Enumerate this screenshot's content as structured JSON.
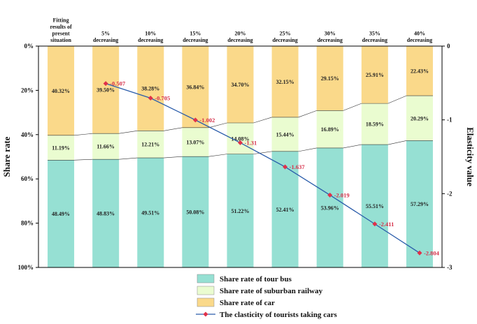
{
  "chart_data": {
    "type": "bar",
    "stacked": true,
    "categories": [
      "Fitting results of present situation",
      "5% decreasing",
      "10% decreasing",
      "15% decreasing",
      "20% decreasing",
      "25% decreasing",
      "30% decreasing",
      "35% decreasing",
      "40% decreasing"
    ],
    "category_lines": [
      [
        "Fitting",
        "results of",
        "present",
        "situation"
      ],
      [
        "5%",
        "decreasing"
      ],
      [
        "10%",
        "decreasing"
      ],
      [
        "15%",
        "decreasing"
      ],
      [
        "20%",
        "decreasing"
      ],
      [
        "25%",
        "decreasing"
      ],
      [
        "30%",
        "decreasing"
      ],
      [
        "35%",
        "decreasing"
      ],
      [
        "40%",
        "decreasing"
      ]
    ],
    "series": [
      {
        "name": "Share rate of tour bus",
        "color": "#96e0d3",
        "values": [
          48.49,
          48.83,
          49.51,
          50.08,
          51.22,
          52.41,
          53.96,
          55.51,
          57.29
        ],
        "labels": [
          "48.49%",
          "48.83%",
          "49.51%",
          "50.08%",
          "51.22%",
          "52.41%",
          "53.96%",
          "55.51%",
          "57.29%"
        ]
      },
      {
        "name": "Share rate of suburban railway",
        "color": "#eafcd0",
        "values": [
          11.19,
          11.66,
          12.21,
          13.07,
          14.08,
          15.44,
          16.89,
          18.59,
          20.29
        ],
        "labels": [
          "11.19%",
          "11.66%",
          "12.21%",
          "13.07%",
          "14.08%",
          "15.44%",
          "16.89%",
          "18.59%",
          "20.29%"
        ]
      },
      {
        "name": "Share rate of car",
        "color": "#fad98a",
        "values": [
          40.32,
          39.5,
          38.28,
          36.84,
          34.7,
          32.15,
          29.15,
          25.91,
          22.43
        ],
        "labels": [
          "40.32%",
          "39.50%",
          "38.28%",
          "36.84%",
          "34.70%",
          "32.15%",
          "29.15%",
          "25.91%",
          "22.43%"
        ]
      }
    ],
    "line_series": {
      "name": "The clasticity of tourists taking cars",
      "color": "#2a5caa",
      "marker_color": "#e0304a",
      "start_index": 1,
      "values": [
        -0.507,
        -0.705,
        -1.002,
        -1.31,
        -1.637,
        -2.019,
        -2.411,
        -2.804
      ],
      "labels": [
        "-0.507",
        "-0.705",
        "-1.002",
        "-1.31",
        "-1.637",
        "-2.019",
        "-2.411",
        "-2.804"
      ]
    },
    "y_left": {
      "label": "Share rate",
      "range": [
        0,
        100
      ],
      "inverted": true,
      "ticks": [
        0,
        20,
        40,
        60,
        80,
        100
      ],
      "tick_labels": [
        "0%",
        "20%",
        "40%",
        "60%",
        "80%",
        "100%"
      ]
    },
    "y_right": {
      "label": "Elasticity value",
      "range": [
        0,
        -3
      ],
      "ticks": [
        0,
        -1,
        -2,
        -3
      ],
      "tick_labels": [
        "0",
        "-1",
        "-2",
        "-3"
      ]
    },
    "legend_position": "bottom",
    "grid": false
  }
}
